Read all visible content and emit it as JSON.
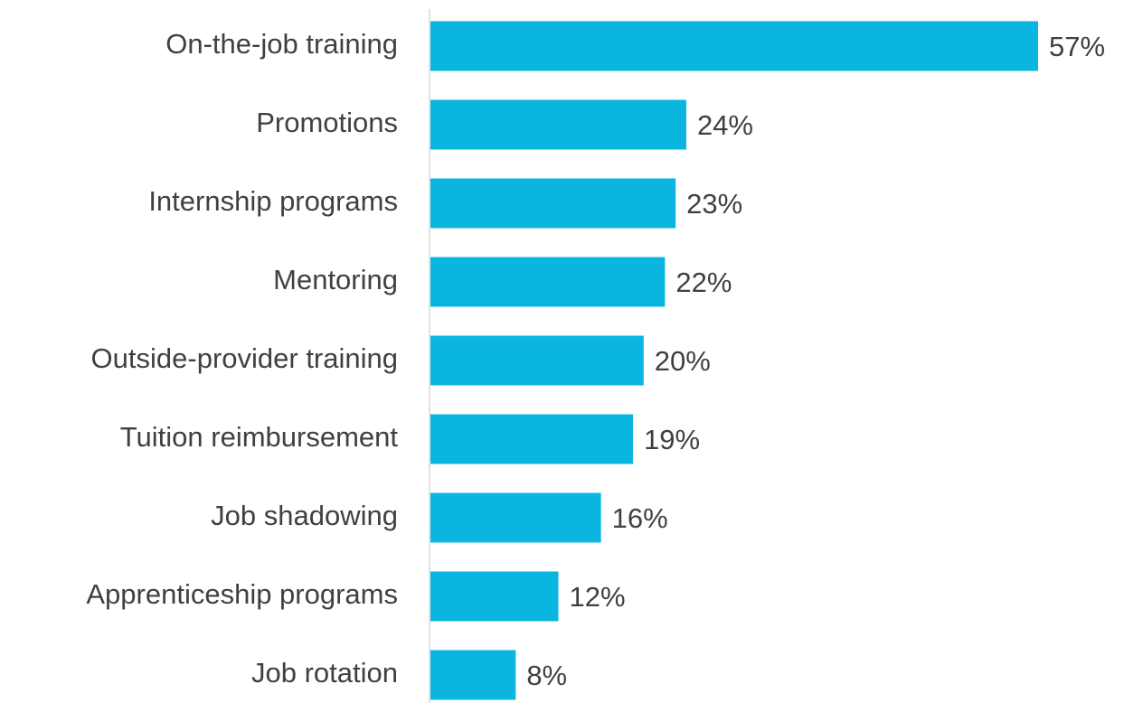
{
  "chart_data": {
    "type": "bar",
    "orientation": "horizontal",
    "categories": [
      "On-the-job training",
      "Promotions",
      "Internship programs",
      "Mentoring",
      "Outside-provider training",
      "Tuition reimbursement",
      "Job shadowing",
      "Apprenticeship programs",
      "Job rotation"
    ],
    "values": [
      57,
      24,
      23,
      22,
      20,
      19,
      16,
      12,
      8
    ],
    "value_labels": [
      "57%",
      "24%",
      "23%",
      "22%",
      "20%",
      "19%",
      "16%",
      "12%",
      "8%"
    ],
    "color": "#0ab5e0"
  }
}
